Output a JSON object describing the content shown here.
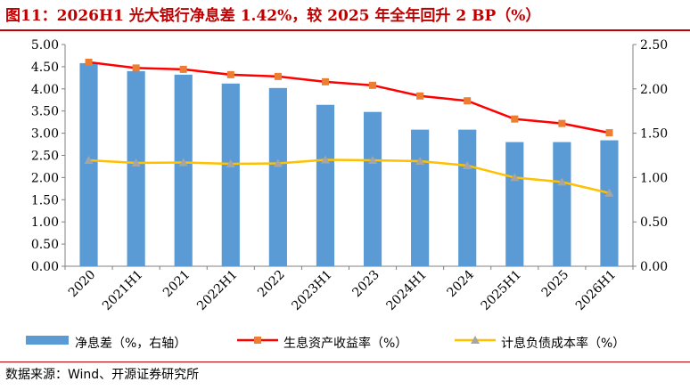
{
  "title": "图11：2026H1 光大银行净息差 1.42%，较 2025 年全年回升 2 BP（%）",
  "source": "数据来源：Wind、开源证券研究所",
  "colors": {
    "title": "#c00000",
    "bar": "#5b9bd5",
    "series1": "#ff0000",
    "marker1": "#ed7d31",
    "series2": "#ffc000",
    "marker2": "#a5a5a5"
  },
  "chart_data": {
    "type": "bar+line",
    "categories": [
      "2020",
      "2021H1",
      "2021",
      "2022H1",
      "2022",
      "2023H1",
      "2023",
      "2024H1",
      "2024",
      "2025H1",
      "2025",
      "2026H1"
    ],
    "left_axis": {
      "min": 0,
      "max": 5,
      "step": 0.5,
      "tick_labels": [
        "0.00",
        "0.50",
        "1.00",
        "1.50",
        "2.00",
        "2.50",
        "3.00",
        "3.50",
        "4.00",
        "4.50",
        "5.00"
      ]
    },
    "right_axis": {
      "min": 0,
      "max": 2.5,
      "step": 0.5,
      "tick_labels": [
        "0.00",
        "0.50",
        "1.00",
        "1.50",
        "2.00",
        "2.50"
      ]
    },
    "bars": {
      "name": "净息差（%，右轴）",
      "axis": "right",
      "values": [
        2.29,
        2.2,
        2.16,
        2.06,
        2.01,
        1.82,
        1.74,
        1.54,
        1.54,
        1.4,
        1.4,
        1.42
      ]
    },
    "lines": [
      {
        "name": "生息资产收益率（%）",
        "axis": "left",
        "color": "#ff0000",
        "marker": "square",
        "values": [
          4.6,
          4.47,
          4.44,
          4.32,
          4.28,
          4.16,
          4.08,
          3.84,
          3.73,
          3.32,
          3.22,
          3.01
        ]
      },
      {
        "name": "计息负债成本率（%）",
        "axis": "left",
        "color": "#ffc000",
        "marker": "triangle",
        "values": [
          2.39,
          2.33,
          2.34,
          2.31,
          2.32,
          2.4,
          2.39,
          2.37,
          2.27,
          2.0,
          1.9,
          1.65
        ]
      }
    ],
    "legend_position": "bottom",
    "grid": false
  }
}
